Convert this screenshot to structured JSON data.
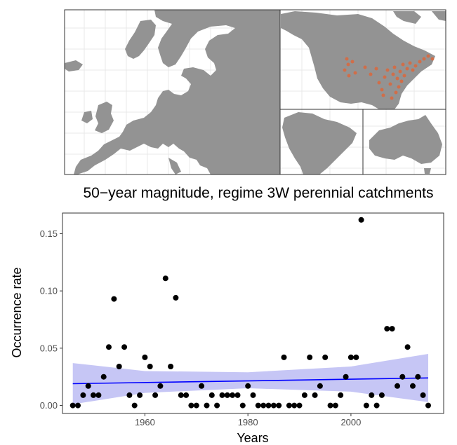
{
  "map_panel": {
    "colors": {
      "land": "#939393",
      "ocean": "#ffffff",
      "grid": "#e8e8e8",
      "frame": "#333333",
      "points": "#f15a22"
    }
  },
  "chart_data": {
    "type": "scatter",
    "title": "50−year magnitude, regime 3W perennial catchments",
    "xlabel": "Years",
    "ylabel": "Occurrence rate",
    "xlim": [
      1944,
      2018
    ],
    "ylim": [
      -0.007,
      0.168
    ],
    "xticks": [
      1960,
      1980,
      2000
    ],
    "xtick_labels": [
      "1960",
      "1980",
      "2000"
    ],
    "yticks": [
      0.0,
      0.05,
      0.1,
      0.15
    ],
    "ytick_labels": [
      "0.00",
      "0.05",
      "0.10",
      "0.15"
    ],
    "grid": false,
    "points": [
      [
        1946,
        0.0
      ],
      [
        1947,
        0.0
      ],
      [
        1948,
        0.009
      ],
      [
        1949,
        0.017
      ],
      [
        1950,
        0.009
      ],
      [
        1951,
        0.009
      ],
      [
        1952,
        0.025
      ],
      [
        1953,
        0.051
      ],
      [
        1954,
        0.093
      ],
      [
        1955,
        0.034
      ],
      [
        1956,
        0.051
      ],
      [
        1957,
        0.009
      ],
      [
        1958,
        0.0
      ],
      [
        1959,
        0.009
      ],
      [
        1960,
        0.042
      ],
      [
        1961,
        0.034
      ],
      [
        1962,
        0.009
      ],
      [
        1963,
        0.017
      ],
      [
        1964,
        0.111
      ],
      [
        1965,
        0.034
      ],
      [
        1966,
        0.094
      ],
      [
        1967,
        0.009
      ],
      [
        1968,
        0.009
      ],
      [
        1969,
        0.0
      ],
      [
        1970,
        0.0
      ],
      [
        1971,
        0.017
      ],
      [
        1972,
        0.0
      ],
      [
        1973,
        0.009
      ],
      [
        1974,
        0.0
      ],
      [
        1975,
        0.009
      ],
      [
        1976,
        0.009
      ],
      [
        1977,
        0.009
      ],
      [
        1978,
        0.009
      ],
      [
        1979,
        0.0
      ],
      [
        1980,
        0.017
      ],
      [
        1981,
        0.009
      ],
      [
        1982,
        0.0
      ],
      [
        1983,
        0.0
      ],
      [
        1984,
        0.0
      ],
      [
        1985,
        0.0
      ],
      [
        1986,
        0.0
      ],
      [
        1987,
        0.042
      ],
      [
        1988,
        0.0
      ],
      [
        1989,
        0.0
      ],
      [
        1990,
        0.0
      ],
      [
        1991,
        0.009
      ],
      [
        1992,
        0.042
      ],
      [
        1993,
        0.009
      ],
      [
        1994,
        0.017
      ],
      [
        1995,
        0.042
      ],
      [
        1996,
        0.0
      ],
      [
        1997,
        0.0
      ],
      [
        1998,
        0.009
      ],
      [
        1999,
        0.025
      ],
      [
        2000,
        0.042
      ],
      [
        2001,
        0.042
      ],
      [
        2002,
        0.162
      ],
      [
        2003,
        0.0
      ],
      [
        2004,
        0.009
      ],
      [
        2005,
        0.0
      ],
      [
        2006,
        0.009
      ],
      [
        2007,
        0.067
      ],
      [
        2008,
        0.067
      ],
      [
        2009,
        0.017
      ],
      [
        2010,
        0.025
      ],
      [
        2011,
        0.051
      ],
      [
        2012,
        0.017
      ],
      [
        2013,
        0.025
      ],
      [
        2014,
        0.009
      ],
      [
        2015,
        0.0
      ]
    ],
    "trend_line": {
      "x": [
        1946,
        2015
      ],
      "y": [
        0.019,
        0.024
      ],
      "color": "#0000ff"
    },
    "confidence_band": {
      "color": "#c6c6f5",
      "x": [
        1946,
        1960,
        1980,
        2000,
        2015
      ],
      "lower": [
        0.001,
        0.011,
        0.015,
        0.012,
        0.003
      ],
      "upper": [
        0.037,
        0.03,
        0.029,
        0.034,
        0.045
      ]
    },
    "point_color": "#000000"
  }
}
